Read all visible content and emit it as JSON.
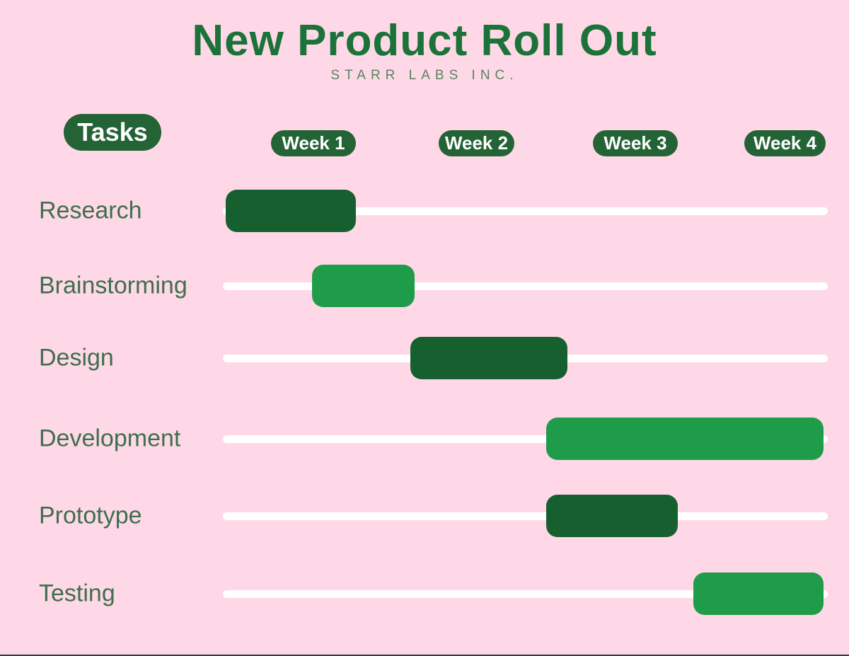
{
  "title": "New Product Roll Out",
  "subtitle": "STARR LABS INC.",
  "legend": {
    "tasks_label": "Tasks"
  },
  "header": {
    "weeks": [
      "Week 1",
      "Week 2",
      "Week 3",
      "Week 4"
    ]
  },
  "colors": {
    "background": "#ffd8e7",
    "title_text": "#1b7339",
    "subtitle_text": "#56845f",
    "task_label_text": "#3e6f4e",
    "pill_green": "#236335",
    "bar_dark_green": "#166030",
    "bar_medium_green": "#1f9c4a",
    "track_white": "#ffffff",
    "bottom_rule": "#3b3b3b"
  },
  "chart_data": {
    "type": "bar",
    "subtype": "gantt",
    "orientation": "horizontal",
    "title": "New Product Roll Out",
    "subtitle": "STARR LABS INC.",
    "x_axis": {
      "unit": "weeks",
      "categories": [
        "Week 1",
        "Week 2",
        "Week 3",
        "Week 4"
      ],
      "range": [
        0,
        4
      ]
    },
    "y_axis": {
      "label": "Tasks"
    },
    "grid": false,
    "legend_position": "top-left",
    "tasks": [
      {
        "label": "Research",
        "start_week": 0.02,
        "end_week": 0.88,
        "color": "dark"
      },
      {
        "label": "Brainstorming",
        "start_week": 0.59,
        "end_week": 1.27,
        "color": "medium"
      },
      {
        "label": "Design",
        "start_week": 1.24,
        "end_week": 2.28,
        "color": "dark"
      },
      {
        "label": "Development",
        "start_week": 2.14,
        "end_week": 3.97,
        "color": "medium"
      },
      {
        "label": "Prototype",
        "start_week": 2.14,
        "end_week": 3.01,
        "color": "dark"
      },
      {
        "label": "Testing",
        "start_week": 3.11,
        "end_week": 3.97,
        "color": "medium"
      }
    ]
  }
}
